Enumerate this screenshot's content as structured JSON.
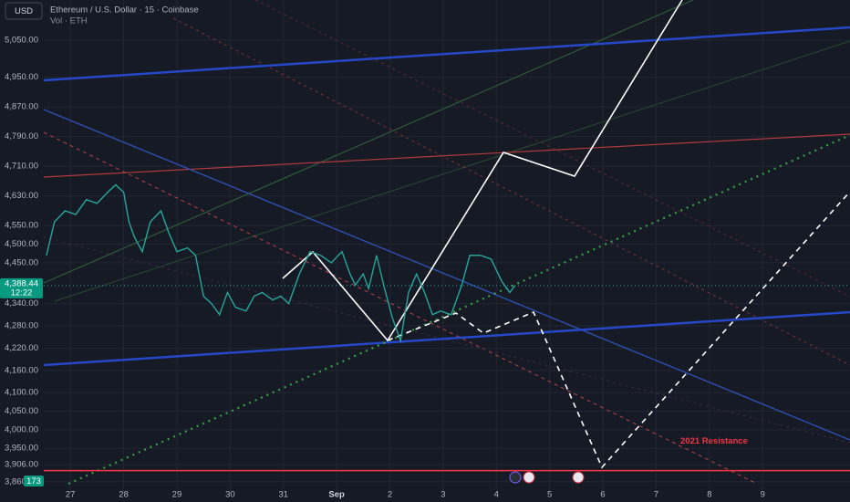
{
  "chart_data": {
    "type": "line",
    "symbol_button": "USD",
    "title": "Ethereum / U.S. Dollar · 15 · Coinbase",
    "subtitle": "Vol · ETH",
    "ylim": [
      3830,
      5158
    ],
    "yticks": [
      {
        "value": 5050,
        "label": "5,050.00"
      },
      {
        "value": 4950,
        "label": "4,950.00"
      },
      {
        "value": 4870,
        "label": "4,870.00"
      },
      {
        "value": 4790,
        "label": "4,790.00"
      },
      {
        "value": 4710,
        "label": "4,710.00"
      },
      {
        "value": 4630,
        "label": "4,630.00"
      },
      {
        "value": 4550,
        "label": "4,550.00"
      },
      {
        "value": 4500,
        "label": "4,500.00"
      },
      {
        "value": 4450,
        "label": "4,450.00"
      },
      {
        "value": 4340,
        "label": "4,340.00"
      },
      {
        "value": 4280,
        "label": "4,280.00"
      },
      {
        "value": 4220,
        "label": "4,220.00"
      },
      {
        "value": 4160,
        "label": "4,160.00"
      },
      {
        "value": 4100,
        "label": "4,100.00"
      },
      {
        "value": 4050,
        "label": "4,050.00"
      },
      {
        "value": 4000,
        "label": "4,000.00"
      },
      {
        "value": 3950,
        "label": "3,950.00"
      },
      {
        "value": 3906,
        "label": "3,906.00"
      },
      {
        "value": 3860,
        "label": "3,860.00"
      }
    ],
    "xlim": [
      -0.5,
      14.64
    ],
    "xticks": [
      {
        "value": 0,
        "label": "27"
      },
      {
        "value": 1,
        "label": "28"
      },
      {
        "value": 2,
        "label": "29"
      },
      {
        "value": 3,
        "label": "30"
      },
      {
        "value": 4,
        "label": "31"
      },
      {
        "value": 5,
        "label": "Sep"
      },
      {
        "value": 6,
        "label": "2"
      },
      {
        "value": 7,
        "label": "3"
      },
      {
        "value": 8,
        "label": "4"
      },
      {
        "value": 9,
        "label": "5"
      },
      {
        "value": 10,
        "label": "6"
      },
      {
        "value": 11,
        "label": "7"
      },
      {
        "value": 12,
        "label": "8"
      },
      {
        "value": 13,
        "label": "9"
      }
    ],
    "grid": true,
    "series": [
      {
        "color": "#26a69a",
        "x": [
          -0.45,
          -0.3,
          -0.1,
          0.1,
          0.3,
          0.5,
          0.7,
          0.85,
          1.0,
          1.1,
          1.2,
          1.35,
          1.5,
          1.7,
          1.85,
          2.0,
          2.2,
          2.35,
          2.5,
          2.65,
          2.8,
          2.95,
          3.1,
          3.3,
          3.45,
          3.6,
          3.8,
          3.95,
          4.1,
          4.3,
          4.5,
          4.7,
          4.9,
          5.1,
          5.25,
          5.35,
          5.5,
          5.6,
          5.75,
          5.9,
          6.05,
          6.2,
          6.35,
          6.5,
          6.65,
          6.8,
          6.95,
          7.15,
          7.35,
          7.5,
          7.7,
          7.9,
          8.1,
          8.25,
          8.35
        ],
        "values": [
          4470,
          4560,
          4590,
          4580,
          4620,
          4610,
          4640,
          4660,
          4640,
          4560,
          4520,
          4480,
          4560,
          4590,
          4530,
          4480,
          4490,
          4470,
          4360,
          4340,
          4310,
          4370,
          4330,
          4320,
          4360,
          4370,
          4350,
          4360,
          4340,
          4420,
          4480,
          4470,
          4450,
          4480,
          4420,
          4390,
          4420,
          4380,
          4470,
          4380,
          4300,
          4240,
          4370,
          4420,
          4370,
          4310,
          4320,
          4310,
          4390,
          4470,
          4470,
          4460,
          4400,
          4370,
          4388.44
        ]
      }
    ],
    "price_tag": {
      "value": 4388.44,
      "label": "4,388.44",
      "countdown": "12:22"
    },
    "annotation": {
      "text": "2021 Resistance",
      "value": 3890
    },
    "last_volume": 173
  }
}
